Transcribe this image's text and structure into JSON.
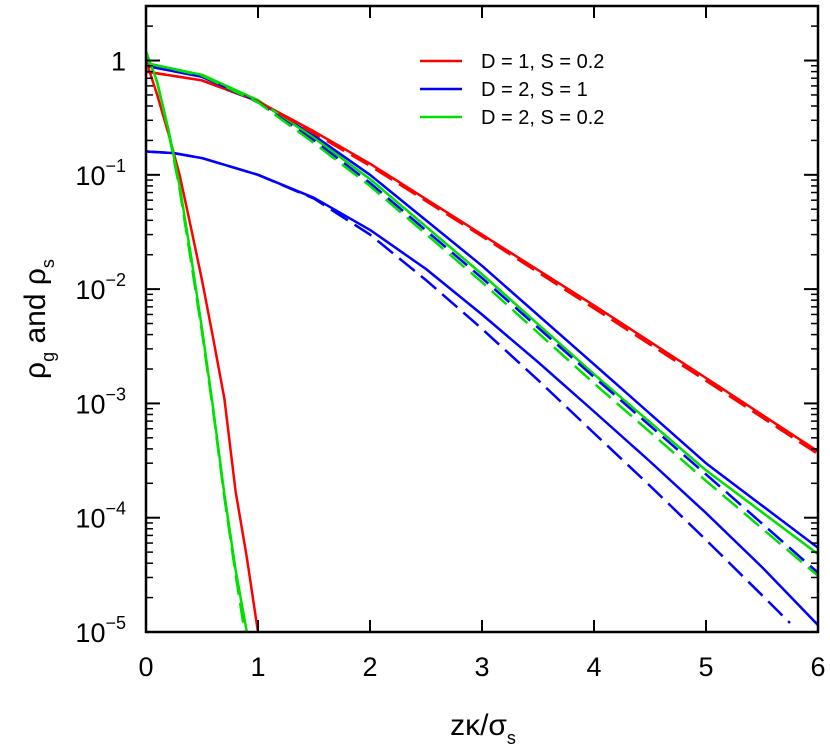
{
  "chart_data": {
    "type": "line",
    "xlabel": {
      "main": "zκ/σ",
      "sub": "s"
    },
    "ylabel": {
      "a": "ρ",
      "a_sub": "g",
      "mid": " and ρ",
      "b_sub": "s"
    },
    "xlim": [
      0,
      6
    ],
    "ylim": [
      1e-05,
      3
    ],
    "yscale": "log",
    "grid": false,
    "legend_position": "top-right",
    "x_ticks": [
      "0",
      "1",
      "2",
      "3",
      "4",
      "5",
      "6"
    ],
    "y_ticks": [
      {
        "value": 1,
        "base": "1",
        "exp": ""
      },
      {
        "value": 0.1,
        "base": "10",
        "exp": "−1"
      },
      {
        "value": 0.01,
        "base": "10",
        "exp": "−2"
      },
      {
        "value": 0.001,
        "base": "10",
        "exp": "−3"
      },
      {
        "value": 0.0001,
        "base": "10",
        "exp": "−4"
      },
      {
        "value": 1e-05,
        "base": "10",
        "exp": "−5"
      }
    ],
    "series": [
      {
        "name": "D = 1, S = 0.2",
        "color": "#ff0000",
        "dash": "solid",
        "in_legend": true,
        "x": [
          0,
          0.5,
          1,
          1.5,
          2,
          3,
          4,
          5,
          6
        ],
        "y": [
          0.8,
          0.67,
          0.44,
          0.24,
          0.125,
          0.03,
          0.0072,
          0.00167,
          0.00038
        ]
      },
      {
        "name": "D = 2, S = 1",
        "color": "#0000ff",
        "dash": "solid",
        "in_legend": true,
        "x": [
          0,
          0.5,
          1,
          1.5,
          2,
          3,
          4,
          5,
          6
        ],
        "y": [
          0.9,
          0.72,
          0.44,
          0.22,
          0.1,
          0.016,
          0.0022,
          0.0003,
          5.45e-05
        ]
      },
      {
        "name": "D = 2, S = 0.2",
        "color": "#00e000",
        "dash": "solid",
        "in_legend": true,
        "x": [
          0,
          0.5,
          1,
          1.5,
          2,
          3,
          4,
          5,
          6
        ],
        "y": [
          0.95,
          0.75,
          0.45,
          0.21,
          0.092,
          0.0135,
          0.0018,
          0.00026,
          4.8e-05
        ]
      },
      {
        "name": "",
        "color": "#ff0000",
        "dash": "dashed",
        "in_legend": false,
        "x": [
          0,
          0.5,
          1,
          1.5,
          2,
          3,
          4,
          5,
          6
        ],
        "y": [
          0.8,
          0.67,
          0.44,
          0.23,
          0.12,
          0.029,
          0.0068,
          0.00158,
          0.00036
        ]
      },
      {
        "name": "",
        "color": "#0000ff",
        "dash": "dashed",
        "in_legend": false,
        "x": [
          0,
          0.5,
          1,
          1.5,
          2,
          3,
          4,
          5,
          6
        ],
        "y": [
          0.9,
          0.72,
          0.43,
          0.2,
          0.085,
          0.0125,
          0.0017,
          0.00024,
          3.3e-05
        ]
      },
      {
        "name": "",
        "color": "#00e000",
        "dash": "dashed",
        "in_legend": false,
        "x": [
          0,
          0.5,
          1,
          1.5,
          2,
          3,
          4,
          5,
          6
        ],
        "y": [
          0.95,
          0.74,
          0.43,
          0.19,
          0.08,
          0.0115,
          0.0015,
          0.00021,
          3.1e-05
        ]
      },
      {
        "name": "",
        "color": "#0000ff",
        "dash": "solid",
        "in_legend": false,
        "x": [
          0,
          0.25,
          0.5,
          1,
          1.5,
          2,
          2.5,
          3,
          3.5,
          4,
          4.5,
          5,
          5.5,
          6
        ],
        "y": [
          0.16,
          0.155,
          0.14,
          0.1,
          0.063,
          0.033,
          0.015,
          0.006,
          0.0023,
          0.00085,
          0.00031,
          0.00011,
          3.7e-05,
          1.15e-05
        ]
      },
      {
        "name": "",
        "color": "#0000ff",
        "dash": "dashed",
        "in_legend": false,
        "x": [
          0,
          0.25,
          0.5,
          1,
          1.5,
          2,
          2.5,
          3,
          3.5,
          4,
          4.5,
          5,
          5.5,
          5.75
        ],
        "y": [
          0.16,
          0.155,
          0.14,
          0.1,
          0.062,
          0.03,
          0.012,
          0.0045,
          0.0016,
          0.00055,
          0.00019,
          6.4e-05,
          2.1e-05,
          1.2e-05
        ]
      },
      {
        "name": "",
        "color": "#ff0000",
        "dash": "solid",
        "in_legend": false,
        "x": [
          0,
          0.1,
          0.2,
          0.3,
          0.4,
          0.5,
          0.6,
          0.7,
          0.8,
          0.9,
          1.0
        ],
        "y": [
          1.0,
          0.5,
          0.23,
          0.1,
          0.035,
          0.012,
          0.0037,
          0.0011,
          0.00017,
          4.5e-05,
          1e-05
        ]
      },
      {
        "name": "",
        "color": "#00e000",
        "dash": "solid",
        "in_legend": false,
        "x": [
          0,
          0.1,
          0.2,
          0.3,
          0.4,
          0.5,
          0.6,
          0.7,
          0.8,
          0.9
        ],
        "y": [
          1.2,
          0.65,
          0.25,
          0.08,
          0.02,
          0.0045,
          0.0009,
          0.00016,
          3.5e-05,
          1e-05
        ]
      },
      {
        "name": "",
        "color": "#00e000",
        "dash": "dashed",
        "in_legend": false,
        "x": [
          0,
          0.1,
          0.2,
          0.3,
          0.4,
          0.5,
          0.6,
          0.7,
          0.8,
          0.88
        ],
        "y": [
          1.2,
          0.64,
          0.24,
          0.075,
          0.018,
          0.0042,
          0.00085,
          0.00015,
          3.2e-05,
          1e-05
        ]
      }
    ]
  }
}
